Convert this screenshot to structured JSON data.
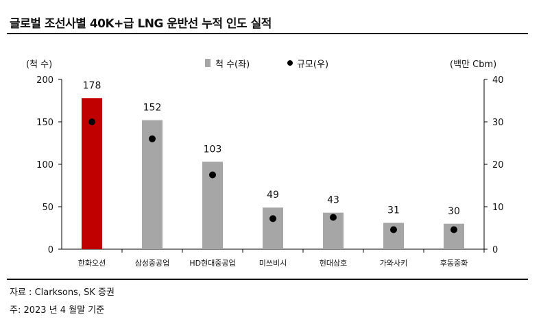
{
  "header": {
    "title": "글로벌 조선사별 40K+급 LNG 운반선 누적 인도 실적"
  },
  "footer": {
    "source": "자료 : Clarksons, SK 증권",
    "note": "주: 2023 년 4 월말 기준"
  },
  "colors": {
    "highlight_bar": "#c00000",
    "bar": "#a6a6a6",
    "marker": "#000000",
    "axis": "#000000"
  },
  "chart_data": {
    "type": "bar",
    "title": "글로벌 조선사별 40K+급 LNG 운반선 누적 인도 실적",
    "categories": [
      "한화오션",
      "삼성중공업",
      "HD현대중공업",
      "미쓰비시",
      "현대삼호",
      "가와사키",
      "후동중화"
    ],
    "series": [
      {
        "name": "척 수(좌)",
        "type": "bar",
        "axis": "left",
        "values": [
          178,
          152,
          103,
          49,
          43,
          31,
          30
        ]
      },
      {
        "name": "규모(우)",
        "type": "scatter",
        "axis": "right",
        "values": [
          30,
          26,
          17.5,
          7.2,
          7.5,
          4.6,
          4.6
        ]
      }
    ],
    "ylabel_left": "(척 수)",
    "ylabel_right": "(백만 Cbm)",
    "ylim_left": [
      0,
      200
    ],
    "ylim_right": [
      0,
      40
    ],
    "yticks_left": [
      0,
      50,
      100,
      150,
      200
    ],
    "yticks_right": [
      0,
      10,
      20,
      30,
      40
    ],
    "highlight_index": 0,
    "grid": false,
    "legend_position": "top-center"
  }
}
